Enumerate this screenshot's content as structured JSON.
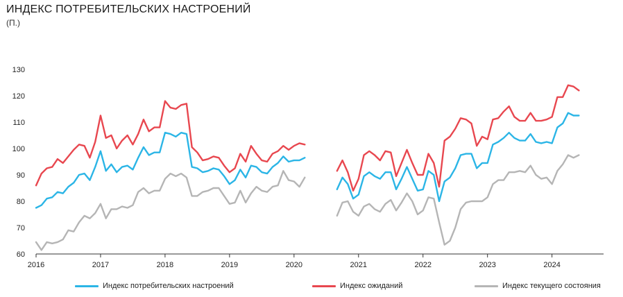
{
  "title": "ИНДЕКС ПОТРЕБИТЕЛЬСКИХ НАСТРОЕНИЙ",
  "subtitle": "(П.)",
  "chart_data": {
    "type": "line",
    "title": "ИНДЕКС ПОТРЕБИТЕЛЬСКИХ НАСТРОЕНИЙ",
    "ylabel": "(П.)",
    "xlabel": "",
    "ylim": [
      60,
      130
    ],
    "yticks": [
      60,
      70,
      80,
      90,
      100,
      110,
      120,
      130
    ],
    "xlim": [
      2016.0,
      2024.8
    ],
    "xticks": [
      {
        "value": 2016,
        "label": "2016"
      },
      {
        "value": 2017,
        "label": "2017"
      },
      {
        "value": 2018,
        "label": "2018"
      },
      {
        "value": 2019,
        "label": "2019"
      },
      {
        "value": 2020,
        "label": "2020"
      },
      {
        "value": 2021,
        "label": "2021"
      },
      {
        "value": 2022,
        "label": "2022"
      },
      {
        "value": 2023,
        "label": "2023"
      },
      {
        "value": 2024,
        "label": "2024"
      }
    ],
    "grid": false,
    "legend_position": "bottom",
    "series": [
      {
        "name": "Индекс потребительских настроений",
        "color": "#2bb5e6",
        "segments": [
          {
            "start": 2016.0,
            "values": [
              77.5,
              78.5,
              81,
              81.5,
              83.5,
              83,
              85.5,
              87,
              90,
              90.5,
              88,
              93,
              99,
              91.5,
              94,
              91,
              93,
              93.5,
              92,
              96.5,
              100.5,
              97.5,
              98.5,
              98.5,
              106,
              105.5,
              104.5,
              106,
              105.5,
              93,
              92.5,
              91,
              91.5,
              92.5,
              92,
              89.5,
              86.5,
              88,
              92,
              89,
              93.5,
              93,
              91,
              90.5,
              93,
              94.5,
              97,
              95,
              95.5,
              95.5,
              96.5
            ]
          },
          {
            "start": 2020.667,
            "values": [
              84.5,
              89,
              86.5,
              81,
              82.5,
              89.5,
              91,
              89.5,
              88.5,
              91,
              91,
              84.5,
              88.5,
              93,
              88.5,
              84,
              84.5,
              91.5,
              90,
              80,
              87.5,
              89,
              92.5,
              97.5,
              98,
              98,
              92.5,
              94.5,
              94.5,
              101.5,
              102.5,
              104,
              106,
              104,
              103,
              103,
              105.5,
              102.5,
              102,
              102.5,
              102,
              108,
              109.5,
              113.5,
              112.5,
              112.5
            ]
          }
        ]
      },
      {
        "name": "Индекс ожиданий",
        "color": "#e8474f",
        "segments": [
          {
            "start": 2016.0,
            "values": [
              86,
              90.5,
              92.5,
              93,
              96,
              94.5,
              97,
              99.5,
              101.5,
              101,
              96.5,
              102.5,
              112.5,
              104,
              105,
              100,
              103,
              105,
              101.5,
              105.5,
              111,
              106.5,
              108,
              108,
              118,
              115.5,
              115,
              116.5,
              117,
              100.5,
              98.5,
              95.5,
              96,
              97,
              96.5,
              93.5,
              91,
              92.5,
              98,
              95,
              101,
              98,
              95.5,
              95,
              98,
              99,
              101,
              99.5,
              101,
              102,
              101.5
            ]
          },
          {
            "start": 2020.667,
            "values": [
              91.5,
              95.5,
              91,
              84,
              88.5,
              97.5,
              99,
              97.5,
              95.5,
              99,
              98.5,
              89.5,
              94.5,
              99.5,
              94.5,
              90,
              90,
              98,
              94.5,
              85.5,
              103,
              104.5,
              107.5,
              111.5,
              111,
              109.5,
              101,
              104.5,
              103.5,
              111,
              111.5,
              114,
              116,
              112,
              110.5,
              110.5,
              113.5,
              110.5,
              110.5,
              111,
              112,
              119.5,
              119.5,
              124,
              123.5,
              122
            ]
          }
        ]
      },
      {
        "name": "Индекс текущего состояния",
        "color": "#b5b5b5",
        "segments": [
          {
            "start": 2016.0,
            "values": [
              64.5,
              61.5,
              64.5,
              64,
              64.5,
              65.5,
              69,
              68.5,
              72,
              74.5,
              73.5,
              75.5,
              79,
              73.5,
              77,
              77,
              78,
              77.5,
              78.5,
              83.5,
              85,
              83,
              84,
              84,
              88.5,
              90.5,
              89.5,
              90.5,
              89,
              82,
              82,
              83.5,
              84,
              85,
              85,
              82,
              79,
              79.5,
              84,
              79.5,
              83,
              85.5,
              84,
              83.5,
              85.5,
              86,
              91.5,
              88,
              87.5,
              85.5,
              89
            ]
          },
          {
            "start": 2020.667,
            "values": [
              74.5,
              79.5,
              80,
              76,
              74.5,
              78,
              79,
              77,
              76,
              79,
              80.5,
              76.5,
              79.5,
              83,
              80,
              75,
              76.5,
              81.5,
              81,
              72,
              63.5,
              65,
              70,
              77,
              79.5,
              80,
              80,
              80,
              81.5,
              86.5,
              88,
              88,
              91,
              91,
              91.5,
              91,
              93.5,
              90,
              88.5,
              89,
              86.5,
              91.5,
              94,
              97.5,
              96.5,
              97.5
            ]
          }
        ]
      }
    ]
  }
}
